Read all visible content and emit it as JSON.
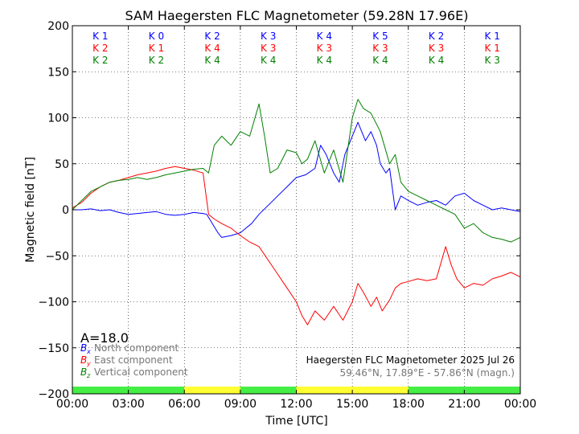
{
  "chart_data": {
    "type": "line",
    "title": "SAM Haegersten FLC Magnetometer (59.28N 17.96E)",
    "xlabel": "Time [UTC]",
    "ylabel": "Magnetic field [nT]",
    "xlim": [
      0,
      24
    ],
    "ylim": [
      -200,
      200
    ],
    "x_ticks": [
      0,
      3,
      6,
      9,
      12,
      15,
      18,
      21,
      24
    ],
    "x_tick_labels": [
      "00:00",
      "03:00",
      "06:00",
      "09:00",
      "12:00",
      "15:00",
      "18:00",
      "21:00",
      "00:00"
    ],
    "y_ticks": [
      -200,
      -150,
      -100,
      -50,
      0,
      50,
      100,
      150,
      200
    ],
    "y_tick_labels": [
      "−200",
      "−150",
      "−100",
      "−50",
      "0",
      "50",
      "100",
      "150",
      "200"
    ],
    "grid": true,
    "k_indices": {
      "rows": [
        {
          "color": "#0000ff",
          "labels": [
            "K 1",
            "K 0",
            "K 2",
            "K 3",
            "K 4",
            "K 5",
            "K 2",
            "K 1"
          ]
        },
        {
          "color": "#ff0000",
          "labels": [
            "K 2",
            "K 1",
            "K 4",
            "K 3",
            "K 3",
            "K 3",
            "K 3",
            "K 1"
          ]
        },
        {
          "color": "#008000",
          "labels": [
            "K 2",
            "K 2",
            "K 4",
            "K 4",
            "K 4",
            "K 4",
            "K 4",
            "K 3"
          ]
        }
      ]
    },
    "activity_bar": [
      {
        "from": 0,
        "to": 6,
        "color": "#44ee44"
      },
      {
        "from": 6,
        "to": 9,
        "color": "#ffff33"
      },
      {
        "from": 9,
        "to": 12,
        "color": "#44ee44"
      },
      {
        "from": 12,
        "to": 18,
        "color": "#ffff33"
      },
      {
        "from": 18,
        "to": 24,
        "color": "#44ee44"
      }
    ],
    "a_index": "A=18.0",
    "legend": [
      {
        "symbol": "B",
        "sub": "x",
        "text": "North component",
        "color": "#0000ff"
      },
      {
        "symbol": "B",
        "sub": "y",
        "text": "East component",
        "color": "#ff0000"
      },
      {
        "symbol": "B",
        "sub": "z",
        "text": "Vertical component",
        "color": "#008000"
      }
    ],
    "info_line1": "Haegersten FLC Magnetometer 2025 Jul 26",
    "info_line2": "59.46°N, 17.89°E - 57.86°N (magn.)",
    "series": [
      {
        "name": "North component",
        "color": "#0000ff",
        "x": [
          0,
          0.5,
          1,
          1.5,
          2,
          2.5,
          3,
          3.5,
          4,
          4.5,
          5,
          5.5,
          6,
          6.5,
          7,
          7.2,
          7.5,
          7.8,
          8,
          8.5,
          9,
          9.3,
          9.6,
          10,
          10.5,
          11,
          11.5,
          12,
          12.5,
          13,
          13.3,
          13.6,
          14,
          14.3,
          14.6,
          15,
          15.3,
          15.7,
          16,
          16.3,
          16.5,
          16.8,
          17,
          17.3,
          17.6,
          18,
          18.5,
          19,
          19.5,
          20,
          20.5,
          21,
          21.5,
          22,
          22.5,
          23,
          23.5,
          24
        ],
        "y": [
          0,
          0,
          1,
          -1,
          0,
          -3,
          -5,
          -4,
          -3,
          -2,
          -5,
          -6,
          -5,
          -3,
          -4,
          -5,
          -15,
          -25,
          -30,
          -28,
          -25,
          -20,
          -15,
          -5,
          5,
          15,
          25,
          35,
          38,
          45,
          70,
          60,
          40,
          30,
          60,
          80,
          95,
          75,
          85,
          70,
          50,
          40,
          45,
          0,
          15,
          10,
          5,
          8,
          10,
          5,
          15,
          18,
          10,
          5,
          0,
          2,
          0,
          -2
        ]
      },
      {
        "name": "East component",
        "color": "#ff0000",
        "x": [
          0,
          0.5,
          1,
          1.5,
          2,
          2.5,
          3,
          3.5,
          4,
          4.5,
          5,
          5.5,
          6,
          6.5,
          7,
          7.3,
          7.6,
          8,
          8.5,
          9,
          9.5,
          10,
          10.5,
          11,
          11.5,
          12,
          12.3,
          12.6,
          13,
          13.5,
          14,
          14.5,
          15,
          15.3,
          15.6,
          16,
          16.3,
          16.6,
          17,
          17.3,
          17.6,
          18,
          18.5,
          19,
          19.5,
          20,
          20.3,
          20.6,
          21,
          21.5,
          22,
          22.5,
          23,
          23.5,
          24
        ],
        "y": [
          2,
          8,
          18,
          25,
          30,
          32,
          35,
          38,
          40,
          42,
          45,
          47,
          45,
          43,
          40,
          -5,
          -10,
          -15,
          -20,
          -28,
          -35,
          -40,
          -55,
          -70,
          -85,
          -100,
          -115,
          -125,
          -110,
          -120,
          -105,
          -120,
          -100,
          -80,
          -90,
          -105,
          -95,
          -110,
          -98,
          -85,
          -80,
          -78,
          -75,
          -77,
          -75,
          -40,
          -60,
          -75,
          -85,
          -80,
          -82,
          -75,
          -72,
          -68,
          -73
        ]
      },
      {
        "name": "Vertical component",
        "color": "#008000",
        "x": [
          0,
          0.5,
          1,
          1.5,
          2,
          2.5,
          3,
          3.5,
          4,
          4.5,
          5,
          5.5,
          6,
          6.5,
          7,
          7.3,
          7.6,
          8,
          8.5,
          9,
          9.5,
          10,
          10.3,
          10.6,
          11,
          11.5,
          12,
          12.3,
          12.6,
          13,
          13.5,
          14,
          14.5,
          15,
          15.3,
          15.6,
          16,
          16.5,
          17,
          17.3,
          17.6,
          18,
          18.5,
          19,
          19.5,
          20,
          20.5,
          21,
          21.5,
          22,
          22.5,
          23,
          23.5,
          24
        ],
        "y": [
          0,
          10,
          20,
          25,
          30,
          32,
          33,
          35,
          33,
          35,
          38,
          40,
          42,
          44,
          45,
          40,
          70,
          80,
          70,
          85,
          80,
          115,
          80,
          40,
          45,
          65,
          62,
          50,
          55,
          75,
          40,
          65,
          30,
          100,
          120,
          110,
          105,
          85,
          50,
          60,
          30,
          20,
          15,
          10,
          5,
          0,
          -5,
          -20,
          -15,
          -25,
          -30,
          -32,
          -35,
          -30
        ]
      }
    ]
  }
}
